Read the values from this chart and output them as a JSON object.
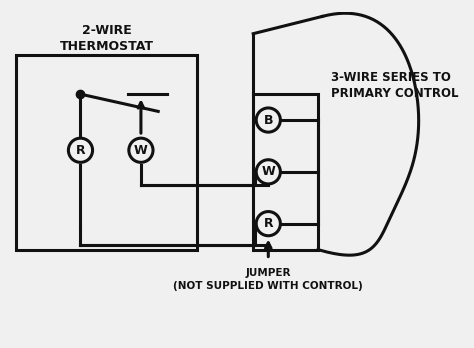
{
  "bg_color": "#f0f0f0",
  "line_color": "#111111",
  "title_2wire": "2-WIRE\nTHERMOSTAT",
  "title_3wire": "3-WIRE SERIES TO\nPRIMARY CONTROL",
  "label_jumper": "JUMPER\n(NOT SUPPLIED WITH CONTROL)",
  "lw": 2.2,
  "lw_thin": 1.5,
  "circle_r": 0.28,
  "figw": 4.74,
  "figh": 3.48,
  "dpi": 100
}
